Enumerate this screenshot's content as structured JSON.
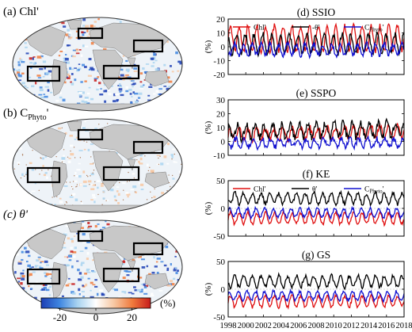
{
  "maps": [
    {
      "label_pre": "(a) Chl",
      "label_sub": "",
      "label_post": "'",
      "italic": false
    },
    {
      "label_pre": "(b) C",
      "label_sub": "Phyto",
      "label_post": "'",
      "italic": false
    },
    {
      "label_pre": "(c) ",
      "label_sub": "",
      "label_post": "θ'",
      "italic": true
    }
  ],
  "colorbar": {
    "ticks": [
      "-20",
      "0",
      "20"
    ],
    "unit": "(%)",
    "colors": [
      "#1d3fb5",
      "#3f86e0",
      "#a9d3f0",
      "#ffffff",
      "#f7c7a2",
      "#f07a3c",
      "#c71b1b"
    ]
  },
  "colors": {
    "chl": "#e01010",
    "theta": "#000000",
    "cphyto": "#1010d0",
    "land": "#c8c8c8",
    "ocean": "#eef3f8"
  },
  "legend_labels": {
    "chl": "Chl'",
    "theta": "-θ'",
    "theta_alt": "θ'",
    "cphyto_pre": "C",
    "cphyto_sub": "Phyto",
    "cphyto_post": "'"
  },
  "x_ticks": [
    "1998",
    "2000",
    "2002",
    "2004",
    "2006",
    "2008",
    "2010",
    "2012",
    "2014",
    "2016",
    "2018"
  ],
  "chart_data": [
    {
      "type": "line",
      "title": "(d) SSIO",
      "ylabel": "(%)",
      "ylim": [
        -20,
        20
      ],
      "yticks": [
        -20,
        -10,
        0,
        10,
        20
      ],
      "xlim": [
        1998,
        2018
      ],
      "legend": true,
      "legend_theta": "neg",
      "series": [
        {
          "name": "Chl'",
          "color": "#e01010",
          "mean": 6,
          "amp": 9,
          "trend": 0,
          "noise": 2,
          "phase": 0
        },
        {
          "name": "-θ'",
          "color": "#000000",
          "mean": 2,
          "amp": 7,
          "trend": 0,
          "noise": 2,
          "phase": 0.3
        },
        {
          "name": "CPhyto'",
          "color": "#1010d0",
          "mean": -2,
          "amp": 4,
          "trend": 0,
          "noise": 2,
          "phase": 0.5
        }
      ]
    },
    {
      "type": "line",
      "title": "(e) SSPO",
      "ylabel": "(%)",
      "ylim": [
        -10,
        30
      ],
      "yticks": [
        -10,
        0,
        10,
        20,
        30
      ],
      "xlim": [
        1998,
        2018
      ],
      "legend": false,
      "series": [
        {
          "name": "Chl'",
          "color": "#e01010",
          "mean": 6,
          "amp": 4,
          "trend": 0.3,
          "noise": 2,
          "phase": 0
        },
        {
          "name": "-θ'",
          "color": "#000000",
          "mean": 8,
          "amp": 5,
          "trend": 0.3,
          "noise": 3,
          "phase": 0.2
        },
        {
          "name": "CPhyto'",
          "color": "#1010d0",
          "mean": -1,
          "amp": 3,
          "trend": 0,
          "noise": 2,
          "phase": 0.4
        }
      ]
    },
    {
      "type": "line",
      "title": "(f) KE",
      "ylabel": "(%)",
      "ylim": [
        -50,
        50
      ],
      "yticks": [
        -50,
        0,
        50
      ],
      "xlim": [
        1998,
        2018
      ],
      "legend": true,
      "legend_theta": "pos",
      "series": [
        {
          "name": "Chl'",
          "color": "#e01010",
          "mean": -18,
          "amp": 10,
          "trend": 0,
          "noise": 3,
          "phase": 0
        },
        {
          "name": "θ'",
          "color": "#000000",
          "mean": 18,
          "amp": 10,
          "trend": 0,
          "noise": 4,
          "phase": 0.5
        },
        {
          "name": "CPhyto'",
          "color": "#1010d0",
          "mean": -8,
          "amp": 8,
          "trend": 0,
          "noise": 3,
          "phase": 0.1
        }
      ]
    },
    {
      "type": "line",
      "title": "(g) GS",
      "ylabel": "(%)",
      "ylim": [
        -50,
        50
      ],
      "yticks": [
        -50,
        0,
        50
      ],
      "xlim": [
        1998,
        2018
      ],
      "legend": false,
      "series": [
        {
          "name": "Chl'",
          "color": "#e01010",
          "mean": -22,
          "amp": 10,
          "trend": 0,
          "noise": 3,
          "phase": 0
        },
        {
          "name": "θ'",
          "color": "#000000",
          "mean": 14,
          "amp": 10,
          "trend": 0,
          "noise": 4,
          "phase": 0.5
        },
        {
          "name": "CPhyto'",
          "color": "#1010d0",
          "mean": -12,
          "amp": 8,
          "trend": 0,
          "noise": 3,
          "phase": 0.1
        }
      ]
    }
  ]
}
